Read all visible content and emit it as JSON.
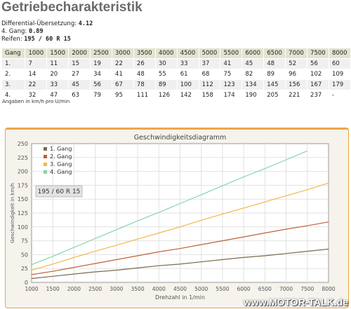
{
  "title": "Getriebecharakteristik",
  "info": [
    {
      "label": "Differential-Übersetzung: ",
      "value": "4.12"
    },
    {
      "label": "4. Gang: ",
      "value": "0.89"
    },
    {
      "label": "Reifen: ",
      "value": "195 / 60 R 15"
    }
  ],
  "table": {
    "header": [
      "Gang",
      "1000",
      "1500",
      "2000",
      "2500",
      "3000",
      "3500",
      "4000",
      "4500",
      "5000",
      "5500",
      "6000",
      "6500",
      "7000",
      "7500",
      "8000"
    ],
    "rows": [
      [
        "1.",
        "7",
        "11",
        "15",
        "19",
        "22",
        "26",
        "30",
        "33",
        "37",
        "41",
        "45",
        "48",
        "52",
        "56",
        "60"
      ],
      [
        "2.",
        "14",
        "20",
        "27",
        "34",
        "41",
        "48",
        "55",
        "61",
        "68",
        "75",
        "82",
        "89",
        "96",
        "102",
        "109"
      ],
      [
        "3.",
        "22",
        "33",
        "45",
        "56",
        "67",
        "78",
        "89",
        "100",
        "112",
        "123",
        "134",
        "145",
        "156",
        "167",
        "179"
      ],
      [
        "4.",
        "32",
        "47",
        "63",
        "79",
        "95",
        "111",
        "126",
        "142",
        "158",
        "174",
        "190",
        "205",
        "221",
        "237",
        "-"
      ]
    ]
  },
  "note": "Angaben in km/h pro U/min",
  "watermark": "www.MOTOR-TALK.de",
  "chart_data": {
    "type": "line",
    "title": "Geschwindigkeitsdiagramm",
    "xlabel": "Drehzahl in 1/min",
    "ylabel": "Geschwindigkeit in km/h",
    "xlim": [
      1000,
      8000
    ],
    "ylim": [
      0,
      250
    ],
    "x": [
      1000,
      1500,
      2000,
      2500,
      3000,
      3500,
      4000,
      4500,
      5000,
      5500,
      6000,
      6500,
      7000,
      7500,
      8000
    ],
    "xticks": [
      "1000",
      "1500",
      "2000",
      "2500",
      "3000",
      "3500",
      "4000",
      "4500",
      "5000",
      "5500",
      "6000",
      "6500",
      "7000",
      "7500",
      "8000"
    ],
    "yticks": [
      "0",
      "25",
      "50",
      "75",
      "100",
      "125",
      "150",
      "175",
      "200",
      "225",
      "250"
    ],
    "grid": true,
    "legend_position": "top-left",
    "annotation": "195 / 60 R 15",
    "series": [
      {
        "name": "1. Gang",
        "color": "#7a6a4c",
        "values": [
          7,
          11,
          15,
          19,
          22,
          26,
          30,
          33,
          37,
          41,
          45,
          48,
          52,
          56,
          60
        ]
      },
      {
        "name": "2. Gang",
        "color": "#c0603a",
        "values": [
          14,
          20,
          27,
          34,
          41,
          48,
          55,
          61,
          68,
          75,
          82,
          89,
          96,
          102,
          109
        ]
      },
      {
        "name": "3. Gang",
        "color": "#f0b848",
        "values": [
          22,
          33,
          45,
          56,
          67,
          78,
          89,
          100,
          112,
          123,
          134,
          145,
          156,
          167,
          179
        ]
      },
      {
        "name": "4. Gang",
        "color": "#88d4a8",
        "values": [
          32,
          47,
          63,
          79,
          95,
          111,
          126,
          142,
          158,
          174,
          190,
          205,
          221,
          237,
          null
        ]
      }
    ]
  }
}
